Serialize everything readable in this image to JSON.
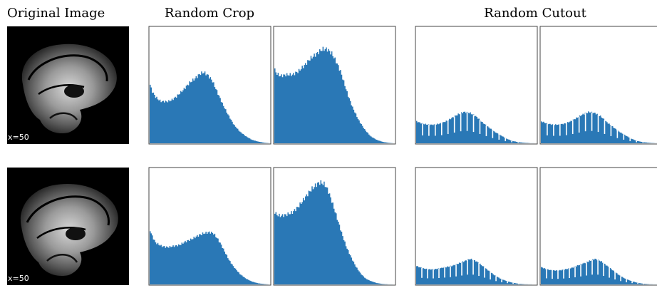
{
  "columns": {
    "original": "Original Image",
    "crop": "Random Crop",
    "cutout": "Random Cutout"
  },
  "colors": {
    "histogram": "#2a78b6",
    "frame": "#444444",
    "image_bg": "#000000"
  },
  "rows": [
    {
      "slice_label": "x=50"
    },
    {
      "slice_label": "x=50"
    }
  ],
  "chart_data": [
    {
      "type": "area",
      "name": "row1-random-crop-1",
      "xlim": [
        0,
        100
      ],
      "ylim": [
        0,
        1
      ],
      "x": [
        0,
        2,
        5,
        8,
        10,
        15,
        18,
        22,
        28,
        33,
        38,
        42,
        45,
        48,
        52,
        55,
        58,
        61,
        65,
        70,
        75,
        80,
        85,
        90,
        95,
        100
      ],
      "y": [
        0.52,
        0.45,
        0.4,
        0.37,
        0.36,
        0.36,
        0.37,
        0.4,
        0.46,
        0.52,
        0.56,
        0.6,
        0.61,
        0.59,
        0.54,
        0.47,
        0.4,
        0.33,
        0.25,
        0.16,
        0.1,
        0.06,
        0.03,
        0.015,
        0.005,
        0
      ]
    },
    {
      "type": "area",
      "name": "row1-random-crop-2",
      "xlim": [
        0,
        100
      ],
      "ylim": [
        0,
        1
      ],
      "x": [
        0,
        2,
        5,
        10,
        15,
        20,
        25,
        30,
        35,
        40,
        44,
        48,
        52,
        55,
        58,
        61,
        65,
        70,
        75,
        80,
        85,
        90,
        95,
        100
      ],
      "y": [
        0.64,
        0.6,
        0.58,
        0.59,
        0.59,
        0.62,
        0.67,
        0.73,
        0.77,
        0.81,
        0.81,
        0.77,
        0.69,
        0.62,
        0.52,
        0.42,
        0.31,
        0.2,
        0.12,
        0.06,
        0.03,
        0.012,
        0.004,
        0
      ]
    },
    {
      "type": "area",
      "name": "row1-random-cutout-1",
      "xlim": [
        0,
        100
      ],
      "ylim": [
        0,
        1
      ],
      "x": [
        0,
        5,
        10,
        15,
        20,
        25,
        30,
        35,
        40,
        45,
        50,
        55,
        60,
        65,
        70,
        75,
        80,
        85,
        90,
        95,
        100
      ],
      "y": [
        0.19,
        0.17,
        0.16,
        0.16,
        0.17,
        0.19,
        0.22,
        0.25,
        0.27,
        0.26,
        0.23,
        0.18,
        0.14,
        0.1,
        0.07,
        0.04,
        0.02,
        0.01,
        0.004,
        0.001,
        0
      ],
      "gaps": 16
    },
    {
      "type": "area",
      "name": "row1-random-cutout-2",
      "xlim": [
        0,
        100
      ],
      "ylim": [
        0,
        1
      ],
      "x": [
        0,
        5,
        10,
        15,
        20,
        25,
        30,
        35,
        40,
        45,
        50,
        55,
        60,
        65,
        70,
        75,
        80,
        85,
        90,
        95,
        100
      ],
      "y": [
        0.19,
        0.17,
        0.16,
        0.16,
        0.17,
        0.19,
        0.22,
        0.25,
        0.27,
        0.26,
        0.23,
        0.18,
        0.14,
        0.1,
        0.07,
        0.04,
        0.02,
        0.01,
        0.004,
        0.001,
        0
      ],
      "gaps": 16
    },
    {
      "type": "area",
      "name": "row2-random-crop-1",
      "xlim": [
        0,
        100
      ],
      "ylim": [
        0,
        1
      ],
      "x": [
        0,
        2,
        5,
        10,
        15,
        20,
        25,
        30,
        35,
        40,
        45,
        50,
        53,
        56,
        59,
        62,
        66,
        70,
        75,
        80,
        85,
        90,
        95,
        100
      ],
      "y": [
        0.48,
        0.42,
        0.36,
        0.33,
        0.32,
        0.33,
        0.34,
        0.37,
        0.39,
        0.42,
        0.44,
        0.45,
        0.44,
        0.4,
        0.35,
        0.29,
        0.21,
        0.15,
        0.09,
        0.05,
        0.025,
        0.01,
        0.004,
        0
      ]
    },
    {
      "type": "area",
      "name": "row2-random-crop-2",
      "xlim": [
        0,
        100
      ],
      "ylim": [
        0,
        1
      ],
      "x": [
        0,
        2,
        5,
        10,
        15,
        20,
        25,
        30,
        35,
        38,
        42,
        45,
        48,
        51,
        54,
        57,
        60,
        64,
        68,
        72,
        76,
        80,
        85,
        90,
        95,
        100
      ],
      "y": [
        0.63,
        0.6,
        0.59,
        0.6,
        0.62,
        0.67,
        0.74,
        0.81,
        0.86,
        0.88,
        0.86,
        0.8,
        0.71,
        0.61,
        0.51,
        0.41,
        0.32,
        0.23,
        0.15,
        0.09,
        0.05,
        0.03,
        0.012,
        0.004,
        0.001,
        0
      ]
    },
    {
      "type": "area",
      "name": "row2-random-cutout-1",
      "xlim": [
        0,
        100
      ],
      "ylim": [
        0,
        1
      ],
      "x": [
        0,
        5,
        10,
        15,
        20,
        25,
        30,
        35,
        40,
        45,
        50,
        55,
        60,
        65,
        70,
        75,
        80,
        85,
        90,
        95,
        100
      ],
      "y": [
        0.16,
        0.14,
        0.13,
        0.13,
        0.14,
        0.15,
        0.16,
        0.18,
        0.2,
        0.22,
        0.2,
        0.16,
        0.12,
        0.08,
        0.05,
        0.03,
        0.015,
        0.006,
        0.002,
        0.0005,
        0
      ],
      "gaps": 18
    },
    {
      "type": "area",
      "name": "row2-random-cutout-2",
      "xlim": [
        0,
        100
      ],
      "ylim": [
        0,
        1
      ],
      "x": [
        0,
        5,
        10,
        15,
        20,
        25,
        30,
        35,
        40,
        45,
        50,
        55,
        60,
        65,
        70,
        75,
        80,
        85,
        90,
        95,
        100
      ],
      "y": [
        0.15,
        0.13,
        0.12,
        0.12,
        0.13,
        0.14,
        0.16,
        0.18,
        0.2,
        0.22,
        0.2,
        0.16,
        0.12,
        0.08,
        0.05,
        0.03,
        0.015,
        0.006,
        0.002,
        0.0005,
        0
      ],
      "gaps": 18
    }
  ]
}
